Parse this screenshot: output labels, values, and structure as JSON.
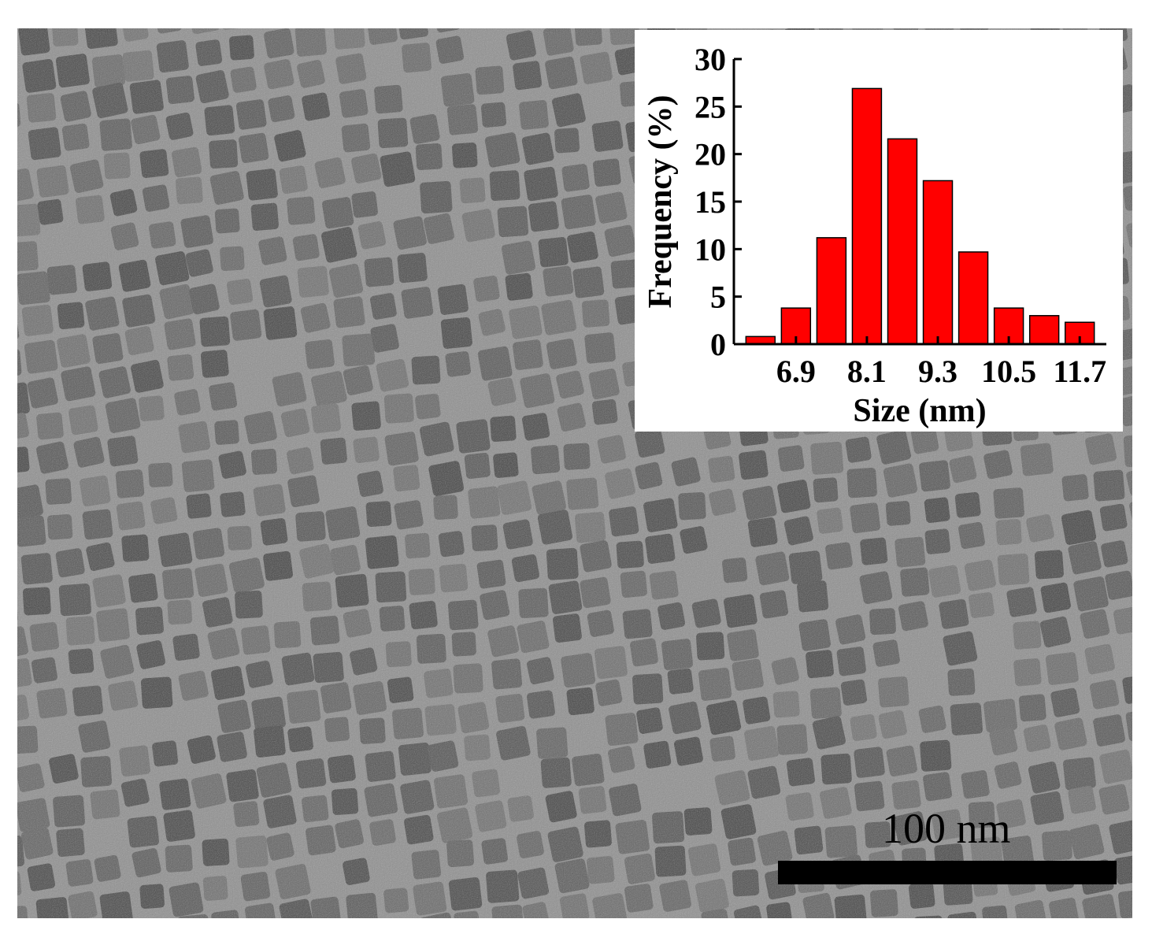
{
  "micrograph": {
    "scale_bar_label": "100 nm"
  },
  "chart_data": {
    "type": "bar",
    "xlabel": "Size (nm)",
    "ylabel": "Frequency (%)",
    "xlim": [
      5.85,
      12.15
    ],
    "ylim": [
      0,
      30
    ],
    "yticks": [
      0,
      5,
      10,
      15,
      20,
      25,
      30
    ],
    "xticks": [
      6.9,
      8.1,
      9.3,
      10.5,
      11.7
    ],
    "xtick_labels": [
      "6.9",
      "8.1",
      "9.3",
      "10.5",
      "11.7"
    ],
    "bin_width": 0.6,
    "series": [
      {
        "x": [
          6.3,
          6.9,
          7.5,
          8.1,
          8.7,
          9.3,
          9.9,
          10.5,
          11.1,
          11.7
        ],
        "values": [
          0.8,
          3.8,
          11.2,
          26.9,
          21.6,
          17.2,
          9.7,
          3.8,
          3.0,
          2.3
        ],
        "color": "#ff0000"
      }
    ]
  }
}
